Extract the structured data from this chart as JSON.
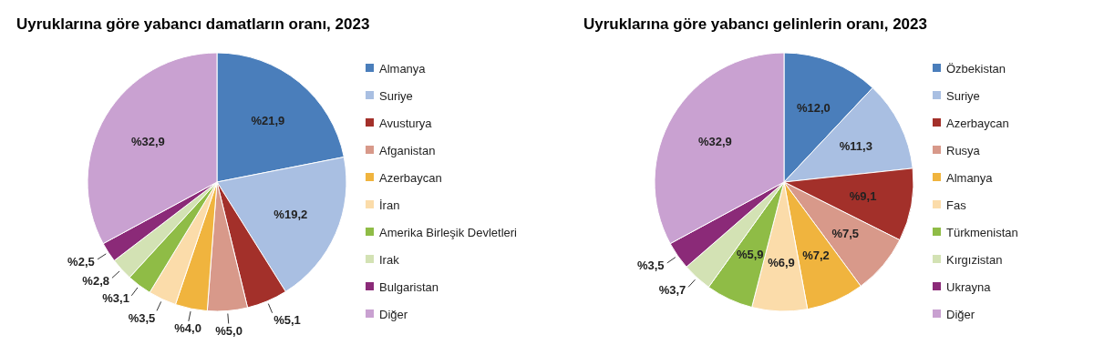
{
  "chart_data": [
    {
      "type": "pie",
      "title": "Uyruklarına göre yabancı damatların oranı, 2023",
      "legend": "right",
      "categories": [
        "Almanya",
        "Suriye",
        "Avusturya",
        "Afganistan",
        "Azerbaycan",
        "İran",
        "Amerika Birleşik Devletleri",
        "Irak",
        "Bulgaristan",
        "Diğer"
      ],
      "values": [
        21.9,
        19.2,
        5.1,
        5.0,
        4.0,
        3.5,
        3.1,
        2.8,
        2.5,
        32.9
      ],
      "value_labels": [
        "%21,9",
        "%19,2",
        "%5,1",
        "%5,0",
        "%4,0",
        "%3,5",
        "%3,1",
        "%2,8",
        "%2,5",
        "%32,9"
      ],
      "colors": [
        "#4a7ebb",
        "#a9bfe2",
        "#a3302a",
        "#d8998a",
        "#f0b43e",
        "#fbdcaa",
        "#8fbc46",
        "#d3e2b4",
        "#8b2a78",
        "#c9a1d1"
      ]
    },
    {
      "type": "pie",
      "title": "Uyruklarına göre yabancı gelinlerin oranı, 2023",
      "legend": "right",
      "categories": [
        "Özbekistan",
        "Suriye",
        "Azerbaycan",
        "Rusya",
        "Almanya",
        "Fas",
        "Türkmenistan",
        "Kırgızistan",
        "Ukrayna",
        "Diğer"
      ],
      "values": [
        12.0,
        11.3,
        9.1,
        7.5,
        7.2,
        6.9,
        5.9,
        3.7,
        3.5,
        32.9
      ],
      "value_labels": [
        "%12,0",
        "%11,3",
        "%9,1",
        "%7,5",
        "%7,2",
        "%6,9",
        "%5,9",
        "%3,7",
        "%3,5",
        "%32,9"
      ],
      "colors": [
        "#4a7ebb",
        "#a9bfe2",
        "#a3302a",
        "#d8998a",
        "#f0b43e",
        "#fbdcaa",
        "#8fbc46",
        "#d3e2b4",
        "#8b2a78",
        "#c9a1d1"
      ]
    }
  ]
}
